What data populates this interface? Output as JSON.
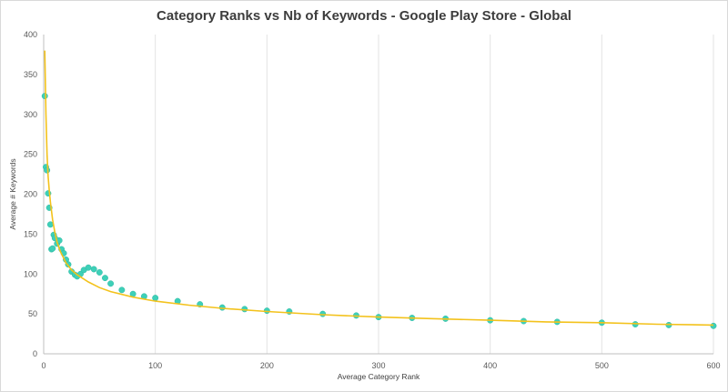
{
  "chart_data": {
    "type": "scatter",
    "title": "Category Ranks vs Nb of Keywords - Google Play Store - Global",
    "xlabel": "Average Category Rank",
    "ylabel": "Average # Keywords",
    "xlim": [
      0,
      600
    ],
    "ylim": [
      0,
      400
    ],
    "x_ticks": [
      0,
      100,
      200,
      300,
      400,
      500,
      600
    ],
    "y_ticks": [
      0,
      50,
      100,
      150,
      200,
      250,
      300,
      350,
      400
    ],
    "grid": "vertical",
    "legend": "none",
    "series": [
      {
        "type": "scatter",
        "color": "#3ed0b8",
        "x": [
          1,
          2,
          3,
          4,
          5,
          6,
          7,
          8,
          9,
          10,
          12,
          14,
          16,
          18,
          20,
          22,
          25,
          28,
          30,
          33,
          36,
          40,
          45,
          50,
          55,
          60,
          70,
          80,
          90,
          100,
          120,
          140,
          160,
          180,
          200,
          220,
          250,
          280,
          300,
          330,
          360,
          400,
          430,
          460,
          500,
          530,
          560,
          600
        ],
        "y": [
          323,
          234,
          230,
          201,
          183,
          162,
          131,
          132,
          149,
          145,
          138,
          142,
          131,
          126,
          118,
          112,
          103,
          99,
          97,
          100,
          105,
          108,
          106,
          102,
          95,
          88,
          80,
          75,
          72,
          70,
          66,
          62,
          58,
          56,
          54,
          53,
          50,
          48,
          46,
          45,
          44,
          42,
          41,
          40,
          39,
          37,
          36,
          35
        ]
      },
      {
        "type": "line",
        "name": "",
        "color": "#f3c21c",
        "x": [
          1,
          2,
          3,
          4,
          5,
          6,
          8,
          10,
          12,
          15,
          20,
          25,
          30,
          40,
          50,
          60,
          80,
          100,
          130,
          160,
          200,
          250,
          300,
          350,
          400,
          450,
          500,
          550,
          600
        ],
        "y": [
          380,
          300,
          250,
          222,
          205,
          190,
          168,
          152,
          140,
          128,
          114,
          105,
          99,
          90,
          83,
          78,
          71,
          66,
          61,
          57,
          53,
          49,
          46,
          44,
          42,
          40,
          39,
          37,
          36
        ]
      }
    ]
  }
}
